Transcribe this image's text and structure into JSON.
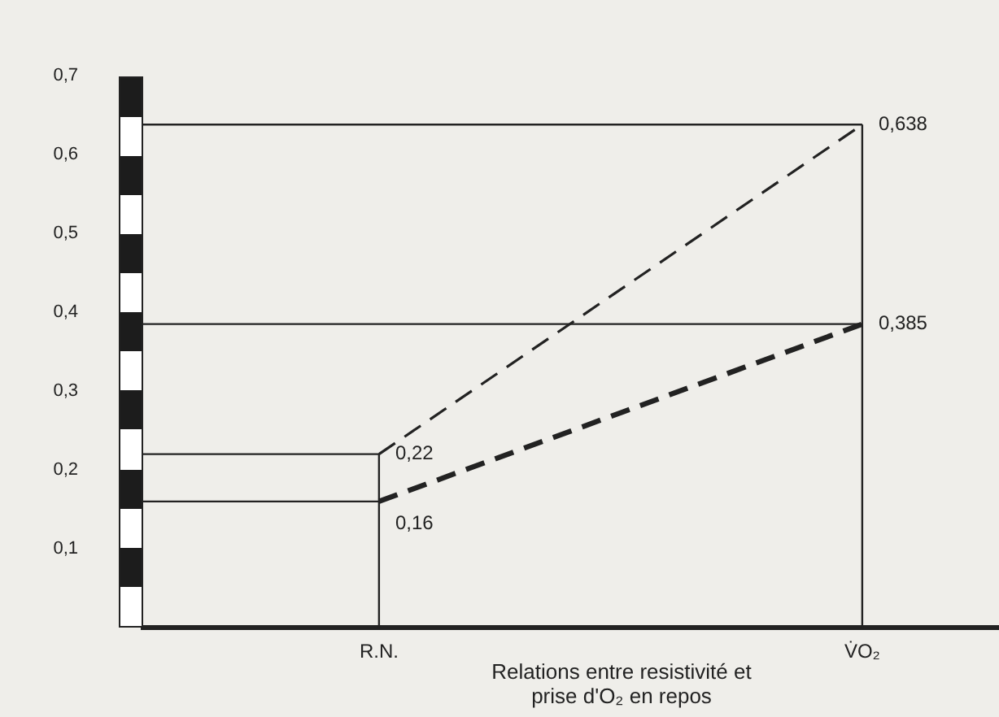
{
  "chart_data": {
    "type": "line",
    "categories": [
      "R.N.",
      "V̇O₂"
    ],
    "series": [
      {
        "color": "#222222",
        "values": [
          0.22,
          0.638
        ],
        "value_labels": [
          "0,22",
          "0,638"
        ]
      },
      {
        "color": "#222222",
        "values": [
          0.16,
          0.385
        ],
        "value_labels": [
          "0,16",
          "0,385"
        ]
      }
    ],
    "ylim": [
      0,
      0.7
    ],
    "yticks": [
      {
        "value": 0.1,
        "label": "0,1"
      },
      {
        "value": 0.2,
        "label": "0,2"
      },
      {
        "value": 0.3,
        "label": "0,3"
      },
      {
        "value": 0.4,
        "label": "0,4"
      },
      {
        "value": 0.5,
        "label": "0,5"
      },
      {
        "value": 0.6,
        "label": "0,6"
      },
      {
        "value": 0.7,
        "label": "0,7"
      }
    ],
    "annotations": [
      "Relations entre resistivité et prise d'O₂ en repos"
    ],
    "ref_lines": [
      {
        "axis": "y",
        "value": 0.638
      },
      {
        "axis": "y",
        "value": 0.385
      },
      {
        "axis": "y",
        "value": 0.22
      },
      {
        "axis": "y",
        "value": 0.16
      },
      {
        "axis": "x",
        "value": "R.N."
      },
      {
        "axis": "x",
        "value": "V̇O₂"
      }
    ],
    "grid": false,
    "legend": false,
    "marker": "none",
    "line_style": "dashed"
  }
}
